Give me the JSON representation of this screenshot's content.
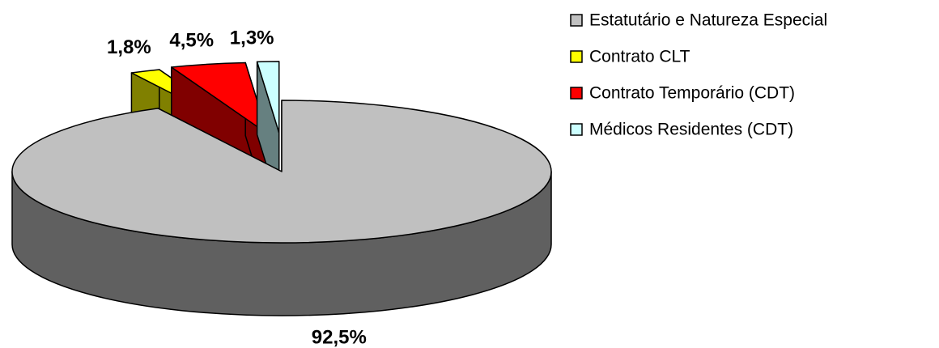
{
  "chart_data": {
    "type": "pie3d",
    "categories": [
      "Estatutário e Natureza Especial",
      "Contrato CLT",
      "Contrato Temporário (CDT)",
      "Médicos Residentes (CDT)"
    ],
    "values": [
      92.5,
      1.8,
      4.5,
      1.3
    ],
    "value_labels": [
      "92,5%",
      "1,8%",
      "4,5%",
      "1,3%"
    ],
    "colors": [
      "#c0c0c0",
      "#ffff00",
      "#ff0000",
      "#ccffff"
    ],
    "legend": "right"
  }
}
